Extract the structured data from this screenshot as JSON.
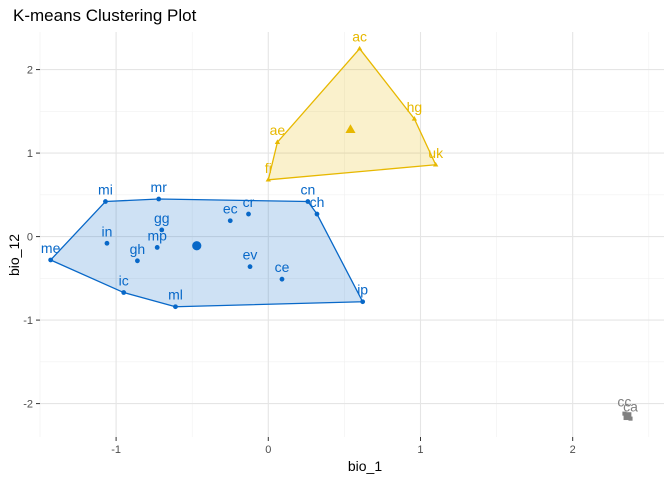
{
  "chart_data": {
    "type": "scatter",
    "title": "K-means Clustering Plot",
    "xlabel": "bio_1",
    "ylabel": "bio_12",
    "xlim": [
      -1.5,
      2.6
    ],
    "ylim": [
      -2.4,
      2.45
    ],
    "x_ticks": [
      -1,
      0,
      1,
      2
    ],
    "x_tick_labels": [
      "-1",
      "0",
      "1",
      "2"
    ],
    "y_ticks": [
      -2,
      -1,
      0,
      1,
      2
    ],
    "y_tick_labels": [
      "-2",
      "-1",
      "0",
      "1",
      "2"
    ],
    "grid": true,
    "legend": "none",
    "clusters": [
      {
        "id": 1,
        "color": "#0868c8",
        "marker": "circle",
        "center": [
          -0.47,
          -0.11
        ],
        "hull": [
          "me",
          "mi",
          "mr",
          "cn",
          "ch",
          "ip",
          "ml",
          "ic"
        ],
        "points": [
          {
            "label": "mi",
            "x": -1.07,
            "y": 0.42
          },
          {
            "label": "mr",
            "x": -0.72,
            "y": 0.45
          },
          {
            "label": "cn",
            "x": 0.26,
            "y": 0.42
          },
          {
            "label": "ch",
            "x": 0.32,
            "y": 0.27
          },
          {
            "label": "ec",
            "x": -0.25,
            "y": 0.19
          },
          {
            "label": "cr",
            "x": -0.13,
            "y": 0.27
          },
          {
            "label": "gg",
            "x": -0.7,
            "y": 0.08
          },
          {
            "label": "in",
            "x": -1.06,
            "y": -0.08
          },
          {
            "label": "mp",
            "x": -0.73,
            "y": -0.13
          },
          {
            "label": "gh",
            "x": -0.86,
            "y": -0.29
          },
          {
            "label": "me",
            "x": -1.43,
            "y": -0.28
          },
          {
            "label": "ev",
            "x": -0.12,
            "y": -0.36
          },
          {
            "label": "ce",
            "x": 0.09,
            "y": -0.51
          },
          {
            "label": "ic",
            "x": -0.95,
            "y": -0.67
          },
          {
            "label": "ml",
            "x": -0.61,
            "y": -0.84
          },
          {
            "label": "ip",
            "x": 0.62,
            "y": -0.78
          }
        ]
      },
      {
        "id": 2,
        "color": "#e7b800",
        "marker": "triangle",
        "center": [
          0.54,
          1.28
        ],
        "hull": [
          "ac",
          "hg",
          "uk",
          "fi",
          "ae"
        ],
        "points": [
          {
            "label": "ac",
            "x": 0.6,
            "y": 2.25
          },
          {
            "label": "hg",
            "x": 0.96,
            "y": 1.41
          },
          {
            "label": "ae",
            "x": 0.06,
            "y": 1.13
          },
          {
            "label": "uk",
            "x": 1.1,
            "y": 0.86
          },
          {
            "label": "fi",
            "x": 0.0,
            "y": 0.68
          }
        ]
      },
      {
        "id": 3,
        "color": "#808080",
        "marker": "square",
        "center": [
          2.36,
          -2.15
        ],
        "hull": [],
        "points": [
          {
            "label": "cc",
            "x": 2.34,
            "y": -2.12
          },
          {
            "label": "ca",
            "x": 2.38,
            "y": -2.18
          }
        ]
      }
    ]
  }
}
